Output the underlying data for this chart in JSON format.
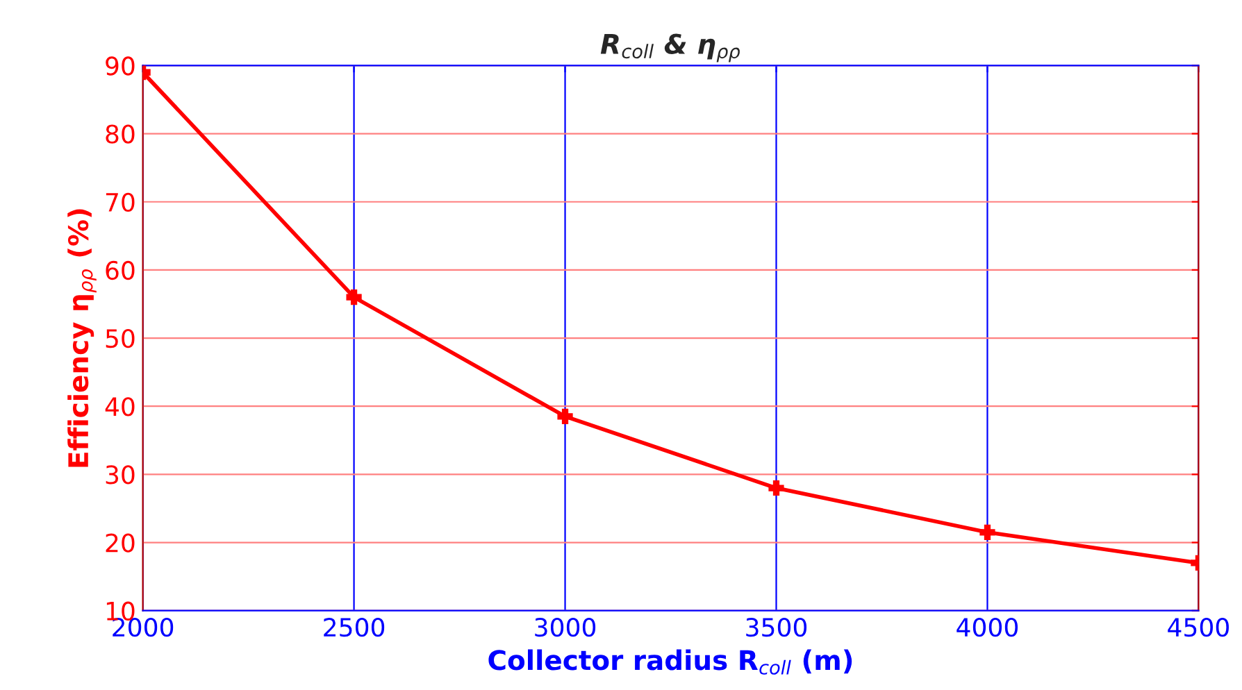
{
  "chart_data": {
    "type": "line",
    "title": "R$_{coll}$ & η$_{ρρ}$",
    "xlabel": "Collector radius R$_{coll}$ (m)",
    "ylabel": "Efficiency η$_{ρρ}$ (%)",
    "x": [
      2000,
      2500,
      3000,
      3500,
      4000,
      4500
    ],
    "series": [
      {
        "color": "#ff0000",
        "values": [
          89,
          56,
          38.5,
          28,
          21.5,
          17
        ]
      }
    ],
    "xlim": [
      2000,
      4500
    ],
    "xticks": [
      2000,
      2500,
      3000,
      3500,
      4000,
      4500
    ],
    "ylim": [
      10,
      90
    ],
    "yticks": [
      10,
      20,
      30,
      40,
      50,
      60,
      70,
      80,
      90
    ],
    "grid": true,
    "marker": "cross",
    "line_style": "solid"
  }
}
